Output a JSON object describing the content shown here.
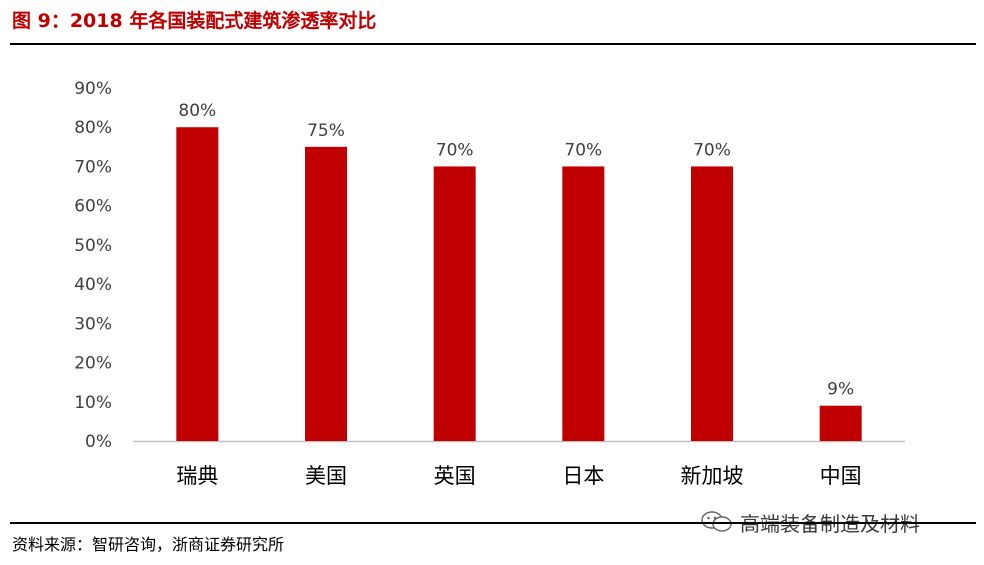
{
  "figure": {
    "title": "图 9：2018 年各国装配式建筑渗透率对比",
    "source": "资料来源：智研咨询，浙商证券研究所",
    "watermark": "高端装备制造及材料"
  },
  "colors": {
    "bar": "#c00000",
    "title": "#c00000",
    "axis": "#bfbfbf",
    "tick_text": "#404040",
    "category_text": "#000000"
  },
  "chart_data": {
    "type": "bar",
    "categories": [
      "瑞典",
      "美国",
      "英国",
      "日本",
      "新加坡",
      "中国"
    ],
    "values": [
      80,
      75,
      70,
      70,
      70,
      9
    ],
    "value_labels": [
      "80%",
      "75%",
      "70%",
      "70%",
      "70%",
      "9%"
    ],
    "ylim": [
      0,
      90
    ],
    "yticks": [
      0,
      10,
      20,
      30,
      40,
      50,
      60,
      70,
      80,
      90
    ],
    "ytick_labels": [
      "0%",
      "10%",
      "20%",
      "30%",
      "40%",
      "50%",
      "60%",
      "70%",
      "80%",
      "90%"
    ],
    "xlabel": "",
    "ylabel": "",
    "grid": false,
    "legend": "none"
  }
}
